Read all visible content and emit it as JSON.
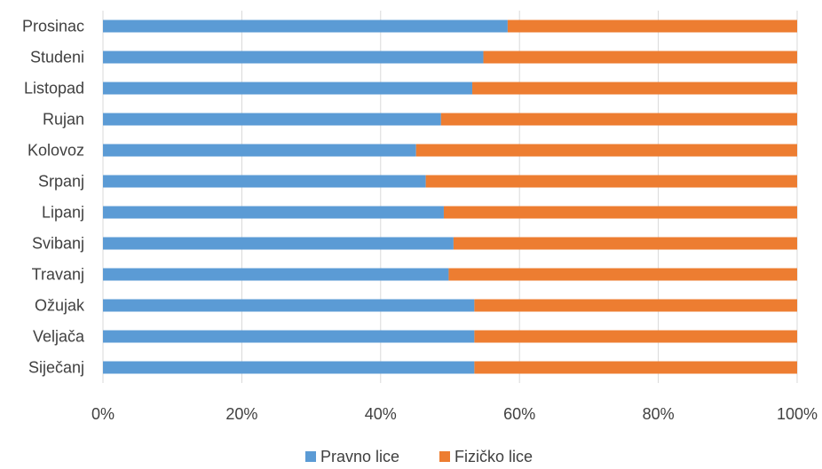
{
  "chart_data": {
    "type": "bar",
    "orientation": "horizontal",
    "stacked": "percent",
    "categories": [
      "Siječanj",
      "Veljača",
      "Ožujak",
      "Travanj",
      "Svibanj",
      "Lipanj",
      "Srpanj",
      "Kolovoz",
      "Rujan",
      "Listopad",
      "Studeni",
      "Prosinac"
    ],
    "series": [
      {
        "name": "Pravno lice",
        "color": "#5b9bd5",
        "values": [
          53.5,
          53.5,
          53.5,
          49.8,
          50.5,
          49.1,
          46.5,
          45.1,
          48.7,
          53.2,
          54.8,
          58.3
        ]
      },
      {
        "name": "Fizičko lice",
        "color": "#ed7d31",
        "values": [
          46.5,
          46.5,
          46.5,
          50.2,
          49.5,
          50.9,
          53.5,
          54.9,
          51.3,
          46.8,
          45.2,
          41.7
        ]
      }
    ],
    "xlim": [
      0,
      100
    ],
    "xticks": [
      "0%",
      "20%",
      "40%",
      "60%",
      "80%",
      "100%"
    ],
    "grid": "vertical",
    "legend": "bottom"
  }
}
